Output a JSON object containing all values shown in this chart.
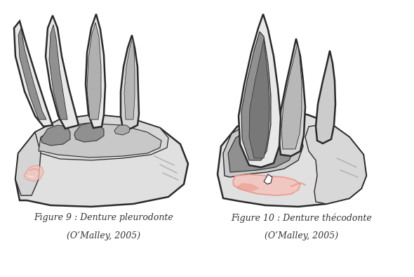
{
  "fig_width": 5.9,
  "fig_height": 3.94,
  "dpi": 100,
  "background_color": "#ffffff",
  "caption1_line1": "Figure 9 : Denture pleurodonte",
  "caption1_line2": "(O’Malley, 2005)",
  "caption2_line1": "Figure 10 : Denture thécodonte",
  "caption2_line2": "(O’Malley, 2005)",
  "caption_fontsize": 9,
  "text_color": "#333333",
  "jaw_color": "#e0e0e0",
  "jaw_color2": "#d0d0d0",
  "jaw_dark": "#b8b8b8",
  "outline_color": "#2a2a2a",
  "tooth_color": "#e8e8e8",
  "tooth_dark": "#909090",
  "tooth_darker": "#787878",
  "pink_light": "#f5c4bc",
  "pink_med": "#e89080",
  "lw": 1.8
}
